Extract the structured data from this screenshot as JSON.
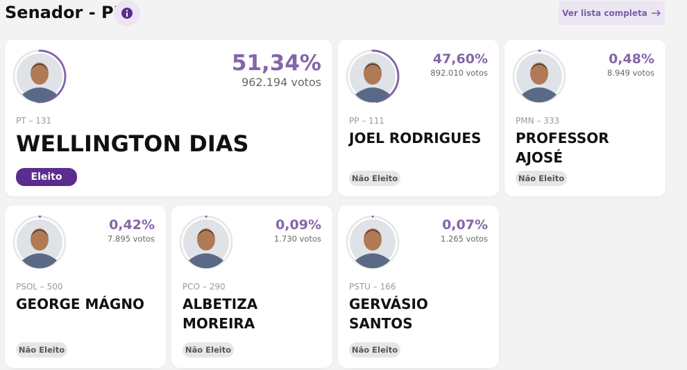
{
  "header": {
    "title": "Senador - PI",
    "button": "Ver lista completa"
  },
  "candidates": [
    {
      "percent": {
        "value": 51.34,
        "label": "51,34%"
      },
      "votes": "962.194 votos",
      "party": "PT – 131",
      "name": "WELLINGTON DIAS",
      "status": "Eleito"
    },
    {
      "percent": {
        "value": 47.6,
        "label": "47,60%"
      },
      "votes": "892.010 votos",
      "party": "PP – 111",
      "name": "JOEL RODRIGUES",
      "status": "Não Eleito"
    },
    {
      "percent": {
        "value": 0.48,
        "label": "0,48%"
      },
      "votes": "8.949 votos",
      "party": "PMN – 333",
      "name": "PROFESSOR AJOSÉ",
      "status": "Não Eleito"
    },
    {
      "percent": {
        "value": 0.42,
        "label": "0,42%"
      },
      "votes": "7.895 votos",
      "party": "PSOL – 500",
      "name": "GEORGE MÁGNO",
      "status": "Não Eleito"
    },
    {
      "percent": {
        "value": 0.09,
        "label": "0,09%"
      },
      "votes": "1.730 votos",
      "party": "PCO – 290",
      "name": "ALBETIZA MOREIRA",
      "status": "Não Eleito"
    },
    {
      "percent": {
        "value": 0.07,
        "label": "0,07%"
      },
      "votes": "1.265 votos",
      "party": "PSTU – 166",
      "name": "GERVÁSIO SANTOS",
      "status": "Não Eleito"
    }
  ]
}
